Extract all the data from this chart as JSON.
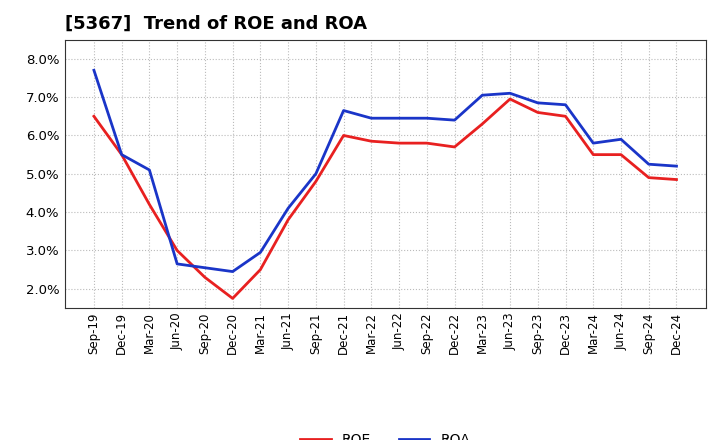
{
  "title": "[5367]  Trend of ROE and ROA",
  "x_labels": [
    "Sep-19",
    "Dec-19",
    "Mar-20",
    "Jun-20",
    "Sep-20",
    "Dec-20",
    "Mar-21",
    "Jun-21",
    "Sep-21",
    "Dec-21",
    "Mar-22",
    "Jun-22",
    "Sep-22",
    "Dec-22",
    "Mar-23",
    "Jun-23",
    "Sep-23",
    "Dec-23",
    "Mar-24",
    "Jun-24",
    "Sep-24",
    "Dec-24"
  ],
  "ROE": [
    6.5,
    5.5,
    4.2,
    3.0,
    2.3,
    1.75,
    2.5,
    3.8,
    4.8,
    6.0,
    5.85,
    5.8,
    5.8,
    5.7,
    6.3,
    6.95,
    6.6,
    6.5,
    5.5,
    5.5,
    4.9,
    4.85
  ],
  "ROA": [
    7.7,
    5.5,
    5.1,
    2.65,
    2.55,
    2.45,
    2.95,
    4.1,
    5.0,
    6.65,
    6.45,
    6.45,
    6.45,
    6.4,
    7.05,
    7.1,
    6.85,
    6.8,
    5.8,
    5.9,
    5.25,
    5.2
  ],
  "ROE_color": "#e82020",
  "ROA_color": "#1a35c8",
  "ylim": [
    1.5,
    8.5
  ],
  "yticks": [
    2.0,
    3.0,
    4.0,
    5.0,
    6.0,
    7.0,
    8.0
  ],
  "background_color": "#ffffff",
  "grid_color": "#bbbbbb",
  "legend_ROE": "ROE",
  "legend_ROA": "ROA",
  "title_fontsize": 13,
  "axis_fontsize": 8.5,
  "legend_fontsize": 10,
  "line_width": 2.0
}
